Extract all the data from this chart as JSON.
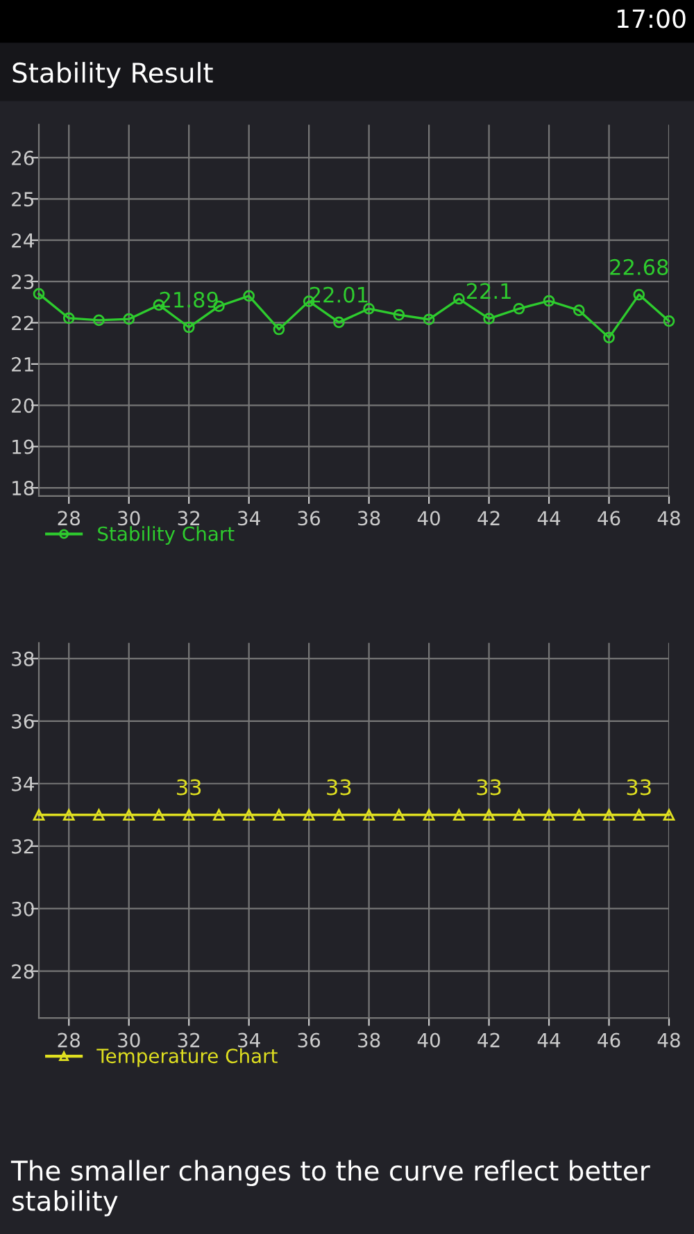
{
  "chart_data": [
    {
      "type": "line",
      "title": "Stability Result",
      "x": [
        27,
        28,
        29,
        30,
        31,
        32,
        33,
        34,
        35,
        36,
        37,
        38,
        39,
        40,
        41,
        42,
        43,
        44,
        45,
        46,
        47,
        48
      ],
      "series": [
        {
          "name": "Stability Chart",
          "color": "#2ecc2e",
          "values": [
            22.7,
            22.11,
            22.06,
            22.09,
            22.43,
            21.89,
            22.4,
            22.65,
            21.84,
            22.52,
            22.01,
            22.34,
            22.19,
            22.08,
            22.58,
            22.1,
            22.34,
            22.53,
            22.3,
            21.64,
            22.68,
            22.04
          ],
          "value_labels": [
            null,
            null,
            null,
            null,
            null,
            "21.89",
            null,
            null,
            null,
            null,
            "22.01",
            null,
            null,
            null,
            null,
            "22.1",
            null,
            null,
            null,
            null,
            "22.68",
            null
          ]
        }
      ],
      "xlim": [
        27,
        48
      ],
      "xticks": [
        28,
        30,
        32,
        34,
        36,
        38,
        40,
        42,
        44,
        46,
        48
      ],
      "ylim": [
        17.8,
        26.8
      ],
      "yticks": [
        18,
        19,
        20,
        21,
        22,
        23,
        24,
        25,
        26
      ],
      "grid": true,
      "legend": "bottom left",
      "marker": "circle",
      "line_style": "solid",
      "annotations": [
        "17:00"
      ]
    },
    {
      "type": "line",
      "x": [
        27,
        28,
        29,
        30,
        31,
        32,
        33,
        34,
        35,
        36,
        37,
        38,
        39,
        40,
        41,
        42,
        43,
        44,
        45,
        46,
        47,
        48
      ],
      "series": [
        {
          "name": "Temperature Chart",
          "color": "#e0e020",
          "values": [
            33,
            33,
            33,
            33,
            33,
            33,
            33,
            33,
            33,
            33,
            33,
            33,
            33,
            33,
            33,
            33,
            33,
            33,
            33,
            33,
            33,
            33
          ],
          "value_labels": [
            null,
            null,
            null,
            null,
            null,
            "33",
            null,
            null,
            null,
            null,
            "33",
            null,
            null,
            null,
            null,
            "33",
            null,
            null,
            null,
            null,
            "33",
            null
          ]
        }
      ],
      "xlim": [
        27,
        48
      ],
      "xticks": [
        28,
        30,
        32,
        34,
        36,
        38,
        40,
        42,
        44,
        46,
        48
      ],
      "ylim": [
        26.5,
        38.5
      ],
      "yticks": [
        28,
        30,
        32,
        34,
        36,
        38
      ],
      "grid": true,
      "legend": "bottom left",
      "marker": "triangle",
      "line_style": "solid",
      "annotations": [
        "The smaller changes to the curve reflect better stability"
      ]
    }
  ]
}
